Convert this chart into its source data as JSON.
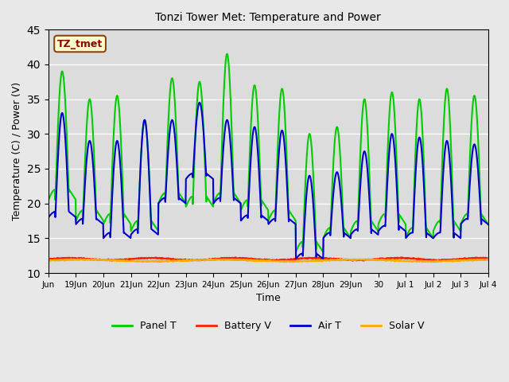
{
  "title": "Tonzi Tower Met: Temperature and Power",
  "xlabel": "Time",
  "ylabel": "Temperature (C) / Power (V)",
  "ylim": [
    10,
    45
  ],
  "yticks": [
    10,
    15,
    20,
    25,
    30,
    35,
    40,
    45
  ],
  "background_color": "#e8e8e8",
  "plot_bg_color": "#dcdcdc",
  "grid_color": "#ffffff",
  "annotation_text": "TZ_tmet",
  "annotation_bg": "#ffffcc",
  "annotation_fg": "#8b0000",
  "legend_entries": [
    "Panel T",
    "Battery V",
    "Air T",
    "Solar V"
  ],
  "legend_colors": [
    "#00cc00",
    "#ff2200",
    "#0000cc",
    "#ffaa00"
  ],
  "panel_t_color": "#00cc00",
  "battery_v_color": "#ff2200",
  "air_t_color": "#0000cc",
  "solar_v_color": "#ffaa00",
  "line_width": 1.5,
  "x_tick_labels": [
    "Jun",
    "19Jun",
    "20Jun",
    "21Jun",
    "22Jun",
    "23Jun",
    "24Jun",
    "25Jun",
    "26Jun",
    "27Jun",
    "28Jun",
    "29Jun",
    "30",
    "Jul 1",
    "Jul 2",
    "Jul 3",
    "Jul 4"
  ],
  "x_tick_positions": [
    0,
    1,
    2,
    3,
    4,
    5,
    6,
    7,
    8,
    9,
    10,
    11,
    12,
    13,
    14,
    15,
    16
  ],
  "panel_peaks": [
    39.0,
    35.0,
    35.5,
    32.0,
    38.0,
    37.5,
    41.5,
    37.0,
    36.5,
    30.0,
    31.0,
    35.0,
    36.0,
    35.0,
    36.5,
    35.5
  ],
  "panel_troughs": [
    20.5,
    17.5,
    17.0,
    16.0,
    20.0,
    19.5,
    20.0,
    19.0,
    17.5,
    13.0,
    15.0,
    16.0,
    17.0,
    15.0,
    16.0,
    17.0
  ],
  "air_peaks": [
    33.0,
    29.0,
    29.0,
    32.0,
    32.0,
    34.5,
    32.0,
    31.0,
    30.5,
    24.0,
    24.5,
    27.5,
    30.0,
    29.5,
    29.0,
    28.5
  ],
  "air_troughs": [
    18.0,
    17.0,
    15.0,
    15.5,
    20.0,
    23.5,
    20.0,
    17.5,
    17.0,
    12.0,
    15.0,
    15.5,
    16.0,
    15.0,
    15.0,
    17.0
  ],
  "battery_v_base": 12.0,
  "solar_v_base": 11.8
}
